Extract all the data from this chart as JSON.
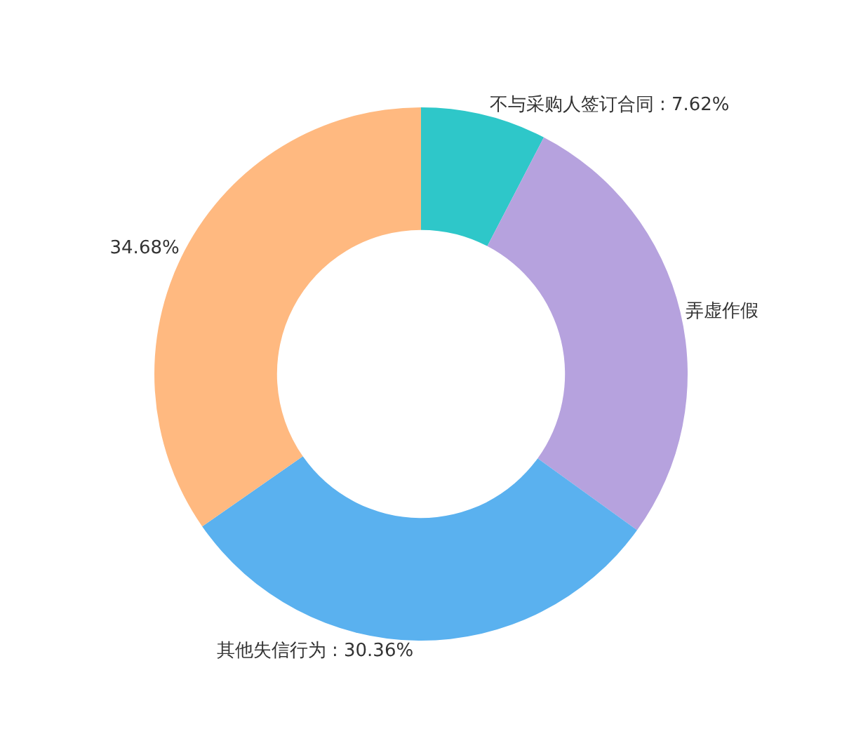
{
  "chart_data": {
    "type": "donut",
    "categories": [
      "不与采购人签订合同",
      "弄虚作假",
      "其他失信行为",
      null
    ],
    "values": [
      7.62,
      27.34,
      30.36,
      34.68
    ],
    "value_labels": [
      "7.62%",
      null,
      "30.36%",
      "34.68%"
    ],
    "colors": [
      "#2ec7c9",
      "#b6a2de",
      "#5ab1ef",
      "#ffb980"
    ],
    "legend": false
  }
}
